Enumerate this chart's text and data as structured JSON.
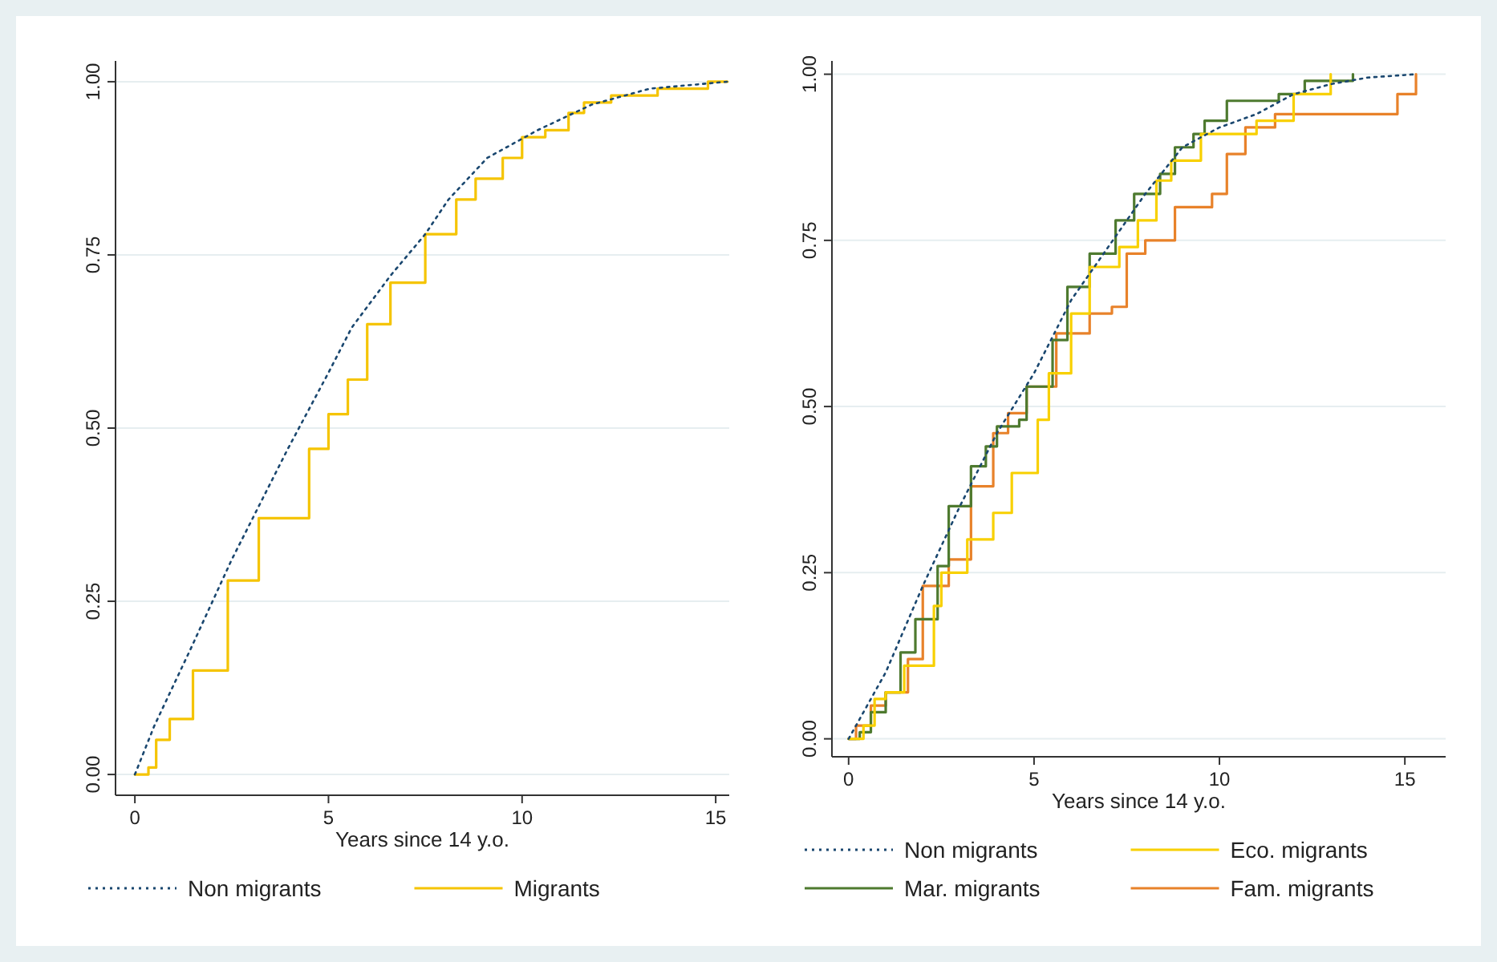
{
  "chart_data": [
    {
      "type": "step",
      "xlabel": "Years since 14 y.o.",
      "xlim": [
        -0.5,
        15.35
      ],
      "xticks": [
        0,
        5,
        10,
        15
      ],
      "ylim": [
        -0.03,
        1.03
      ],
      "yticks": [
        {
          "value": 0,
          "label": "0.00"
        },
        {
          "value": 0.25,
          "label": "0.25"
        },
        {
          "value": 0.5,
          "label": "0.50"
        },
        {
          "value": 0.75,
          "label": "0.75"
        },
        {
          "value": 1,
          "label": "1.00"
        }
      ],
      "grid": "y",
      "legend": "bottom",
      "series": [
        {
          "name": "Non migrants",
          "type": "line",
          "line_style": "dotted",
          "color": "#1a476f",
          "x": [
            0,
            0.5,
            1.43,
            2.5,
            3.95,
            5,
            5.6,
            6.6,
            7.5,
            8.1,
            9.1,
            10.4,
            11.8,
            13.3,
            15.3
          ],
          "values": [
            0,
            0.07,
            0.18,
            0.31,
            0.47,
            0.58,
            0.645,
            0.72,
            0.78,
            0.83,
            0.89,
            0.93,
            0.967,
            0.99,
            1.0
          ]
        },
        {
          "name": "Migrants",
          "line_style": "solid",
          "color": "#f5c400",
          "x": [
            0,
            0.35,
            0.55,
            0.9,
            1.5,
            2.4,
            3.2,
            4.5,
            5,
            5.5,
            6,
            6.6,
            7.5,
            8.3,
            8.8,
            9.5,
            10,
            10.6,
            11.2,
            11.6,
            12.3,
            13.5,
            14.8,
            15.3
          ],
          "values": [
            0,
            0.01,
            0.05,
            0.08,
            0.15,
            0.28,
            0.37,
            0.47,
            0.52,
            0.57,
            0.65,
            0.71,
            0.78,
            0.83,
            0.86,
            0.89,
            0.92,
            0.93,
            0.955,
            0.97,
            0.98,
            0.99,
            1.0,
            1.0
          ]
        }
      ]
    },
    {
      "type": "step",
      "xlabel": "Years since 14 y.o.",
      "xlim": [
        -0.45,
        16.1
      ],
      "xticks": [
        0,
        5,
        10,
        15
      ],
      "ylim": [
        -0.027,
        1.02
      ],
      "yticks": [
        {
          "value": 0,
          "label": "0.00"
        },
        {
          "value": 0.25,
          "label": "0.25"
        },
        {
          "value": 0.5,
          "label": "0.50"
        },
        {
          "value": 0.75,
          "label": "0.75"
        },
        {
          "value": 1,
          "label": "1.00"
        }
      ],
      "grid": "y",
      "legend": "bottom",
      "series": [
        {
          "name": "Non migrants",
          "type": "line",
          "line_style": "dotted",
          "color": "#1a476f",
          "x": [
            0,
            1,
            2,
            3,
            4,
            5,
            6,
            7,
            8,
            9,
            10,
            11,
            12,
            13,
            14,
            15.3
          ],
          "values": [
            0,
            0.1,
            0.23,
            0.35,
            0.46,
            0.55,
            0.66,
            0.74,
            0.82,
            0.89,
            0.92,
            0.94,
            0.97,
            0.985,
            0.995,
            1.0
          ]
        },
        {
          "name": "Eco. migrants",
          "line_style": "solid",
          "color": "#f8d000",
          "x": [
            0,
            0.4,
            0.7,
            1,
            1.5,
            2.3,
            2.5,
            3.2,
            3.9,
            4.4,
            5.1,
            5.4,
            6,
            6.5,
            7.3,
            7.8,
            8.3,
            8.7,
            9.5,
            10,
            11,
            12,
            13
          ],
          "values": [
            0,
            0.02,
            0.06,
            0.07,
            0.11,
            0.2,
            0.25,
            0.3,
            0.34,
            0.4,
            0.48,
            0.55,
            0.64,
            0.71,
            0.74,
            0.78,
            0.84,
            0.87,
            0.91,
            0.91,
            0.93,
            0.97,
            1.0
          ]
        },
        {
          "name": "Mar. migrants",
          "line_style": "solid",
          "color": "#4e7a2f",
          "x": [
            0,
            0.3,
            0.6,
            1,
            1.4,
            1.8,
            2.4,
            2.7,
            3.3,
            3.7,
            4,
            4.6,
            4.8,
            5.5,
            5.9,
            6.5,
            7.2,
            7.7,
            8.4,
            8.8,
            9.3,
            9.6,
            10.2,
            11.6,
            12.3,
            13.6
          ],
          "values": [
            0,
            0.01,
            0.04,
            0.07,
            0.13,
            0.18,
            0.26,
            0.35,
            0.41,
            0.44,
            0.47,
            0.48,
            0.53,
            0.6,
            0.68,
            0.73,
            0.78,
            0.82,
            0.85,
            0.89,
            0.91,
            0.93,
            0.96,
            0.97,
            0.99,
            1.0
          ]
        },
        {
          "name": "Fam. migrants",
          "line_style": "solid",
          "color": "#e8822a",
          "x": [
            0,
            0.2,
            0.6,
            1,
            1.6,
            2,
            2.7,
            3.3,
            3.9,
            4.3,
            4.8,
            5.6,
            6.5,
            7.1,
            7.5,
            8,
            8.8,
            9.8,
            10.2,
            10.7,
            11.5,
            13.5,
            14.8,
            15.3
          ],
          "values": [
            0,
            0.02,
            0.05,
            0.07,
            0.12,
            0.23,
            0.27,
            0.38,
            0.46,
            0.49,
            0.53,
            0.61,
            0.64,
            0.65,
            0.73,
            0.75,
            0.8,
            0.82,
            0.88,
            0.92,
            0.94,
            0.94,
            0.97,
            1.0
          ]
        }
      ]
    }
  ]
}
